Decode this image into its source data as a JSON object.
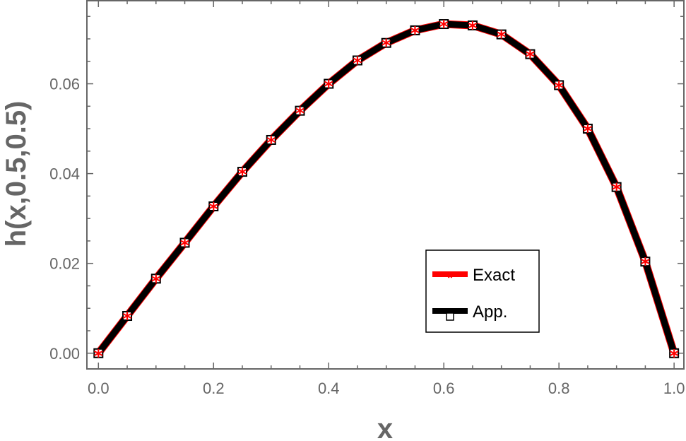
{
  "chart_data": {
    "type": "line",
    "title": "",
    "xlabel": "x",
    "ylabel": "h(x,0.5,0.5)",
    "xlim": [
      -0.02,
      1.017
    ],
    "ylim": [
      -0.0035,
      0.0785
    ],
    "grid": false,
    "legend_placement": "bottom-right",
    "x_ticks": [
      0.0,
      0.2,
      0.4,
      0.6,
      0.8,
      1.0
    ],
    "x_tick_labels": [
      "0.0",
      "0.2",
      "0.4",
      "0.6",
      "0.8",
      "1.0"
    ],
    "y_ticks": [
      0.0,
      0.02,
      0.04,
      0.06
    ],
    "y_tick_labels": [
      "0.00",
      "0.02",
      "0.04",
      "0.06"
    ],
    "x": [
      0,
      0.05,
      0.1,
      0.15,
      0.2,
      0.25,
      0.3,
      0.35,
      0.4,
      0.45,
      0.5,
      0.55,
      0.6,
      0.65,
      0.7,
      0.75,
      0.8,
      0.85,
      0.9,
      0.95,
      1.0
    ],
    "series": [
      {
        "name": "Exact",
        "color": "#ff0000",
        "marker": "asterisk",
        "values": [
          0,
          0.0083,
          0.0166,
          0.0246,
          0.0327,
          0.0404,
          0.0475,
          0.054,
          0.06,
          0.0652,
          0.0691,
          0.0719,
          0.0733,
          0.073,
          0.071,
          0.0666,
          0.0597,
          0.05,
          0.037,
          0.0204,
          0
        ]
      },
      {
        "name": "App.",
        "color": "#000000",
        "marker": "open-square",
        "values": [
          0,
          0.0083,
          0.0166,
          0.0246,
          0.0327,
          0.0404,
          0.0475,
          0.054,
          0.06,
          0.0652,
          0.0691,
          0.0719,
          0.0733,
          0.073,
          0.071,
          0.0666,
          0.0597,
          0.05,
          0.037,
          0.0204,
          0
        ]
      }
    ]
  }
}
